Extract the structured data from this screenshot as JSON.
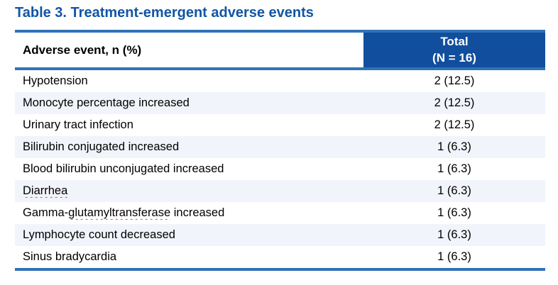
{
  "title": "Table 3. Treatment-emergent adverse events",
  "colors": {
    "title_blue": "#1155A5",
    "header_fill": "#114E9E",
    "header_text": "#FFFFFF",
    "border_blue": "#2E74B5",
    "row_stripe": "#F1F4FA",
    "text_black": "#000000",
    "spellcheck_red": "#E8503A"
  },
  "table": {
    "header": {
      "event_column_label": "Adverse event, n (%)",
      "total_column_line1": "Total",
      "total_column_line2": "(N = 16)"
    },
    "rows": [
      {
        "event": "Hypotension",
        "value": "2 (12.5)"
      },
      {
        "event": "Monocyte percentage increased",
        "value": "2 (12.5)"
      },
      {
        "event": "Urinary tract infection",
        "value": "2 (12.5)"
      },
      {
        "event": "Bilirubin conjugated increased",
        "value": "1 (6.3)"
      },
      {
        "event": "Blood bilirubin unconjugated increased",
        "value": "1 (6.3)"
      },
      {
        "event": "Diarrhea",
        "value": "1 (6.3)",
        "misspelled": "Diarrhea"
      },
      {
        "event": "Gamma-glutamyltransferase increased",
        "value": "1 (6.3)",
        "misspelled": "glutamyltransferase"
      },
      {
        "event": "Lymphocyte count decreased",
        "value": "1 (6.3)"
      },
      {
        "event": "Sinus bradycardia",
        "value": "1 (6.3)"
      }
    ]
  }
}
